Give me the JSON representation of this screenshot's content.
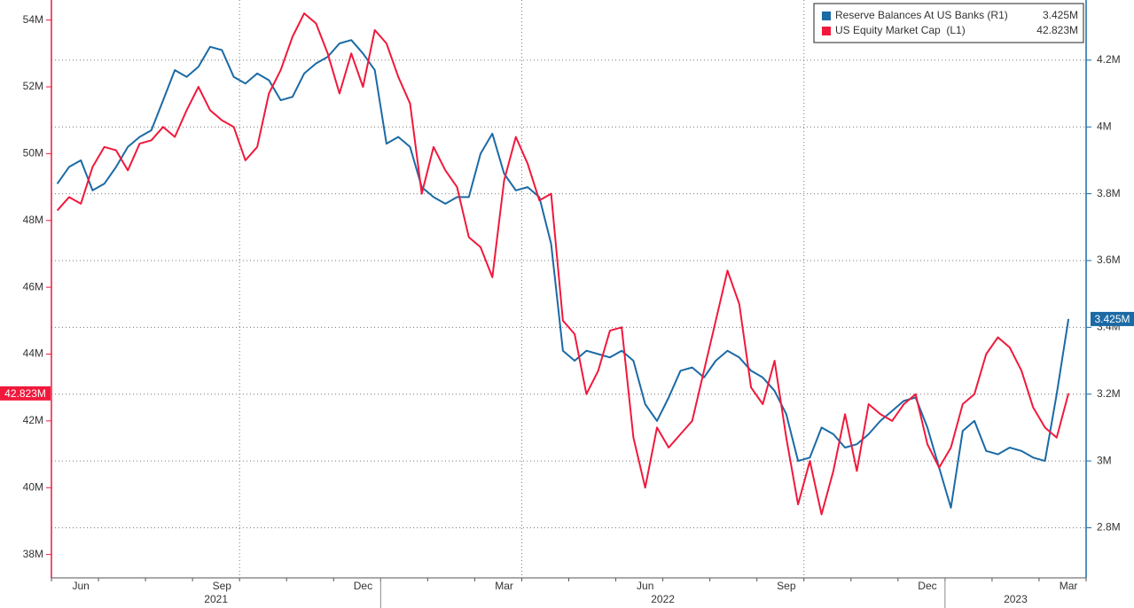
{
  "chart_data": {
    "type": "line",
    "categories": [
      null,
      null,
      "Jun",
      null,
      null,
      null,
      null,
      null,
      null,
      null,
      null,
      null,
      null,
      null,
      "Sep",
      null,
      null,
      null,
      null,
      null,
      null,
      null,
      null,
      null,
      null,
      null,
      "Dec",
      null,
      null,
      null,
      null,
      null,
      null,
      null,
      null,
      null,
      null,
      null,
      "Mar",
      null,
      null,
      null,
      null,
      null,
      null,
      null,
      null,
      null,
      null,
      null,
      "Jun",
      null,
      null,
      null,
      null,
      null,
      null,
      null,
      null,
      null,
      null,
      null,
      "Sep",
      null,
      null,
      null,
      null,
      null,
      null,
      null,
      null,
      null,
      null,
      null,
      "Dec",
      null,
      null,
      null,
      null,
      null,
      null,
      null,
      null,
      null,
      null,
      null,
      "Mar",
      null
    ],
    "x_years": [
      "2021",
      "2022",
      "2023"
    ],
    "series": [
      {
        "name": "Reserve Balances At US Banks (R1)",
        "color": "#1b6aa5",
        "axis": "y2",
        "last_value_label": "3.425M",
        "values": [
          3.83,
          3.88,
          3.9,
          3.81,
          3.83,
          3.88,
          3.94,
          3.97,
          3.99,
          4.08,
          4.17,
          4.15,
          4.18,
          4.24,
          4.23,
          4.15,
          4.13,
          4.16,
          4.14,
          4.08,
          4.09,
          4.16,
          4.19,
          4.21,
          4.25,
          4.26,
          4.22,
          4.17,
          3.95,
          3.97,
          3.94,
          3.82,
          3.79,
          3.77,
          3.79,
          3.79,
          3.92,
          3.98,
          3.86,
          3.81,
          3.82,
          3.79,
          3.65,
          3.33,
          3.3,
          3.33,
          3.32,
          3.31,
          3.33,
          3.3,
          3.17,
          3.12,
          3.19,
          3.27,
          3.28,
          3.25,
          3.3,
          3.33,
          3.31,
          3.27,
          3.25,
          3.21,
          3.14,
          3.0,
          3.01,
          3.1,
          3.08,
          3.04,
          3.05,
          3.08,
          3.12,
          3.15,
          3.18,
          3.19,
          3.1,
          2.98,
          2.86,
          3.09,
          3.12,
          3.03,
          3.02,
          3.04,
          3.03,
          3.01,
          3.0,
          3.2,
          3.425,
          null
        ]
      },
      {
        "name": "US Equity Market Cap  (L1)",
        "color": "#f0193c",
        "last_value_label": "42.823M",
        "values": [
          48.3,
          48.7,
          48.5,
          49.6,
          50.2,
          50.1,
          49.5,
          50.3,
          50.4,
          50.8,
          50.5,
          51.3,
          52.0,
          51.3,
          51.0,
          50.8,
          49.8,
          50.2,
          51.8,
          52.5,
          53.5,
          54.2,
          53.9,
          53.0,
          51.8,
          53.0,
          52.0,
          53.7,
          53.3,
          52.3,
          51.5,
          48.8,
          50.2,
          49.5,
          49.0,
          47.5,
          47.2,
          46.3,
          49.2,
          50.5,
          49.7,
          48.6,
          48.8,
          45.0,
          44.6,
          42.8,
          43.5,
          44.7,
          44.8,
          41.5,
          40.0,
          41.8,
          41.2,
          41.6,
          42.0,
          43.5,
          45.0,
          46.5,
          45.5,
          43.0,
          42.5,
          43.8,
          41.5,
          39.5,
          40.8,
          39.2,
          40.5,
          42.2,
          40.5,
          42.5,
          42.2,
          42.0,
          42.5,
          42.8,
          41.3,
          40.6,
          41.2,
          42.5,
          42.8,
          44.0,
          44.5,
          44.2,
          43.5,
          42.4,
          41.8,
          41.5,
          42.823,
          null
        ]
      }
    ],
    "ylim": [
      37.3,
      54.6
    ],
    "yticks": [
      {
        "value": 38,
        "label": "38M"
      },
      {
        "value": 40,
        "label": "40M"
      },
      {
        "value": 42,
        "label": "42M"
      },
      {
        "value": 44,
        "label": "44M"
      },
      {
        "value": 46,
        "label": "46M"
      },
      {
        "value": 48,
        "label": "48M"
      },
      {
        "value": 50,
        "label": "50M"
      },
      {
        "value": 52,
        "label": "52M"
      },
      {
        "value": 54,
        "label": "54M"
      }
    ],
    "y2lim": [
      2.65,
      4.38
    ],
    "y2ticks": [
      {
        "value": 2.8,
        "label": "2.8M"
      },
      {
        "value": 3,
        "label": "3M"
      },
      {
        "value": 3.2,
        "label": "3.2M"
      },
      {
        "value": 3.4,
        "label": "3.4M"
      },
      {
        "value": 3.6,
        "label": "3.6M"
      },
      {
        "value": 3.8,
        "label": "3.8M"
      },
      {
        "value": 4,
        "label": "4M"
      },
      {
        "value": 4.2,
        "label": "4.2M"
      }
    ],
    "grid": true
  }
}
